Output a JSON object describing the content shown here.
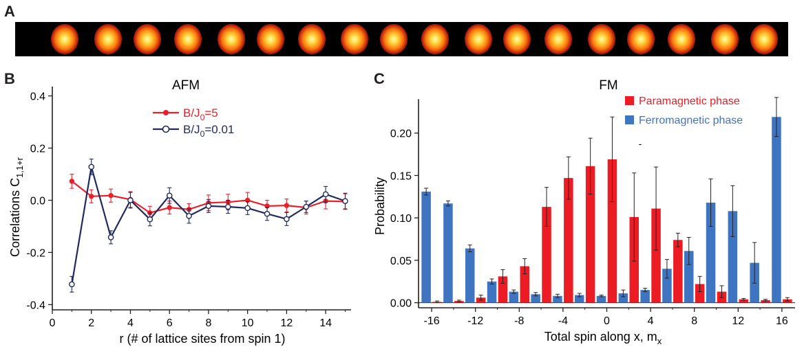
{
  "panels": {
    "a_label": "A",
    "b_label": "B",
    "c_label": "C"
  },
  "ion_strip": {
    "ion_count": 18
  },
  "chart_data": [
    {
      "panel": "B",
      "type": "line",
      "title": "AFM",
      "xlabel": "r (# of lattice sites from spin 1)",
      "ylabel": "Correlations C",
      "ylabel_sub": "1,1+r",
      "xlim": [
        0,
        15.3
      ],
      "ylim": [
        -0.42,
        0.42
      ],
      "xticks": [
        0,
        2,
        4,
        6,
        8,
        10,
        12,
        14
      ],
      "yticks": [
        {
          "value": 0.4,
          "label": "0.4"
        },
        {
          "value": 0.2,
          "label": "0.2"
        },
        {
          "value": 0.0,
          "label": "0.0"
        },
        {
          "value": -0.2,
          "label": "-0.2"
        },
        {
          "value": -0.4,
          "label": "-0.4"
        }
      ],
      "legend": {
        "placement": "top-center"
      },
      "series": [
        {
          "name": "B/J",
          "name_sub": "0",
          "name_suffix": "=5",
          "color": "#e8202a",
          "marker": "filled-circle",
          "x": [
            1,
            2,
            3,
            4,
            5,
            6,
            7,
            8,
            9,
            10,
            11,
            12,
            13,
            14,
            15
          ],
          "y": [
            0.073,
            0.015,
            0.018,
            0.003,
            -0.048,
            -0.028,
            -0.035,
            -0.01,
            -0.007,
            0.0,
            -0.022,
            -0.02,
            -0.028,
            -0.003,
            -0.005
          ],
          "err": [
            0.027,
            0.025,
            0.025,
            0.03,
            0.025,
            0.025,
            0.022,
            0.03,
            0.03,
            0.03,
            0.022,
            0.025,
            0.025,
            0.03,
            0.03
          ]
        },
        {
          "name": "B/J",
          "name_sub": "0",
          "name_suffix": "=0.01",
          "color": "#1f2a5e",
          "marker": "open-circle",
          "x": [
            1,
            2,
            3,
            4,
            5,
            6,
            7,
            8,
            9,
            10,
            11,
            12,
            13,
            14,
            15
          ],
          "y": [
            -0.322,
            0.128,
            -0.142,
            0.0,
            -0.073,
            0.018,
            -0.06,
            -0.022,
            -0.025,
            -0.03,
            -0.052,
            -0.072,
            -0.025,
            0.023,
            -0.003
          ],
          "err": [
            0.03,
            0.03,
            0.025,
            0.03,
            0.025,
            0.03,
            0.028,
            0.025,
            0.025,
            0.025,
            0.025,
            0.025,
            0.022,
            0.03,
            0.03
          ]
        }
      ]
    },
    {
      "panel": "C",
      "type": "bar",
      "title": "FM",
      "xlabel": "Total spin along x, m",
      "xlabel_sub": "x",
      "ylabel": "Probability",
      "xlim": [
        -17.2,
        17.2
      ],
      "ylim": [
        -0.006,
        0.25
      ],
      "xticks": [
        -16,
        -12,
        -8,
        -4,
        0,
        4,
        8,
        12,
        16
      ],
      "yticks": [
        {
          "value": 0.0,
          "label": "0.00"
        },
        {
          "value": 0.05,
          "label": "0.05"
        },
        {
          "value": 0.1,
          "label": "0.10"
        },
        {
          "value": 0.15,
          "label": "0.15"
        },
        {
          "value": 0.2,
          "label": "0.20"
        }
      ],
      "bar_width": 0.85,
      "legend": {
        "placement": "top-right"
      },
      "stray_mark": "-",
      "series": [
        {
          "name": "Paramagnetic phase",
          "color": "#ec1c24",
          "offset": 0.5,
          "x": [
            -16,
            -14,
            -12,
            -10,
            -8,
            -6,
            -4,
            -2,
            0,
            2,
            4,
            6,
            8,
            10,
            12,
            14,
            16
          ],
          "y": [
            0.001,
            0.002,
            0.006,
            0.031,
            0.043,
            0.113,
            0.147,
            0.161,
            0.169,
            0.101,
            0.111,
            0.074,
            0.022,
            0.013,
            0.004,
            0.003,
            0.004
          ],
          "err": [
            0.001,
            0.001,
            0.003,
            0.008,
            0.009,
            0.023,
            0.025,
            0.033,
            0.05,
            0.052,
            0.049,
            0.008,
            0.009,
            0.007,
            0.001,
            0.001,
            0.002
          ]
        },
        {
          "name": "Ferromagnetic phase",
          "color": "#3f75c0",
          "offset": -0.5,
          "x": [
            -16,
            -14,
            -12,
            -10,
            -8,
            -6,
            -4,
            -2,
            0,
            2,
            4,
            6,
            8,
            10,
            12,
            14,
            16
          ],
          "y": [
            0.131,
            0.117,
            0.064,
            0.025,
            0.013,
            0.01,
            0.008,
            0.009,
            0.008,
            0.011,
            0.015,
            0.04,
            0.061,
            0.118,
            0.108,
            0.047,
            0.219
          ],
          "err": [
            0.004,
            0.003,
            0.004,
            0.003,
            0.002,
            0.002,
            0.002,
            0.002,
            0.001,
            0.004,
            0.002,
            0.011,
            0.016,
            0.028,
            0.03,
            0.024,
            0.023
          ]
        }
      ]
    }
  ]
}
